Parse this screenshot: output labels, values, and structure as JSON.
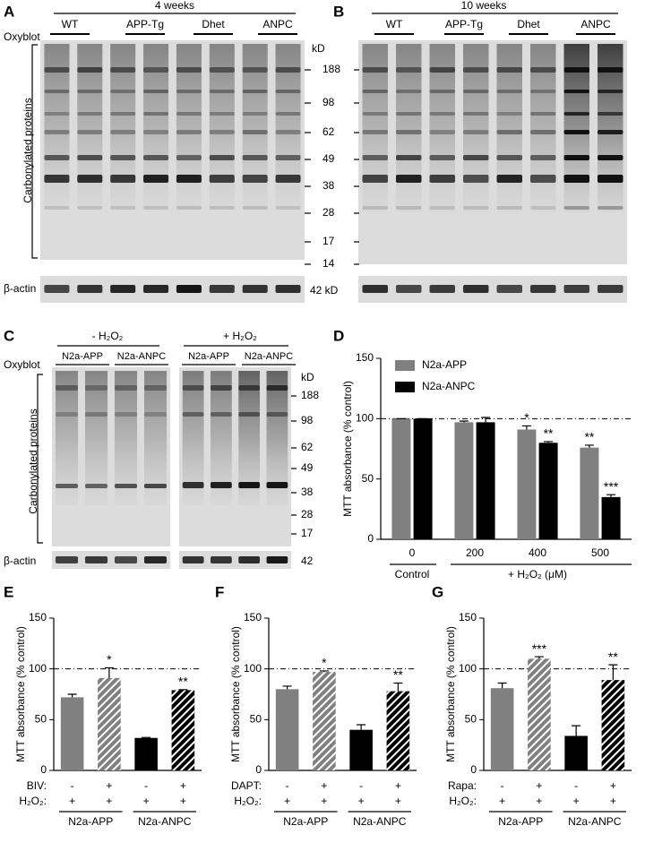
{
  "figure": {
    "A": {
      "panel": "A",
      "period": "4 weeks",
      "groups": [
        "WT",
        "APP-Tg",
        "Dhet",
        "ANPC"
      ],
      "oxyblot": "Oxyblot",
      "ylabel": "Carbonylated proteins",
      "kd": "kD",
      "markers": [
        188,
        98,
        62,
        49,
        38,
        28,
        17,
        14
      ],
      "actin": "β-actin",
      "actin_kd": "42 kD"
    },
    "B": {
      "panel": "B",
      "period": "10 weeks",
      "groups": [
        "WT",
        "APP-Tg",
        "Dhet",
        "ANPC"
      ]
    },
    "C": {
      "panel": "C",
      "conditions": [
        "- H₂O₂",
        "+ H₂O₂"
      ],
      "lines": [
        "N2a-APP",
        "N2a-ANPC",
        "N2a-APP",
        "N2a-ANPC"
      ],
      "oxyblot": "Oxyblot",
      "ylabel": "Carbonylated proteins",
      "kd": "kD",
      "markers": [
        188,
        98,
        62,
        49,
        38,
        28,
        17
      ],
      "actin": "β-actin",
      "actin_kd": "42"
    }
  },
  "chart_data": [
    {
      "type": "bar",
      "panel": "D",
      "ylabel": "MTT absorbance (% control)",
      "ylim": [
        0,
        150
      ],
      "yticks": [
        0,
        50,
        100,
        150
      ],
      "ref_line": 100,
      "categories": [
        "0",
        "200",
        "400",
        "500"
      ],
      "group_labels": [
        "Control",
        "+ H₂O₂ (μM)"
      ],
      "series": [
        {
          "name": "N2a-APP",
          "color": "#808080",
          "values": [
            100,
            97,
            91,
            76
          ],
          "errors": [
            0,
            1,
            3,
            2
          ],
          "significance": [
            null,
            null,
            "*",
            "**"
          ]
        },
        {
          "name": "N2a-ANPC",
          "color": "#000000",
          "values": [
            100,
            97,
            80,
            35
          ],
          "errors": [
            0,
            4,
            1,
            2
          ],
          "significance": [
            null,
            null,
            "**",
            "***"
          ]
        }
      ]
    },
    {
      "type": "bar",
      "panel": "E",
      "ylabel": "MTT absorbance (% control)",
      "ylim": [
        0,
        150
      ],
      "yticks": [
        0,
        50,
        100,
        150
      ],
      "ref_line": 100,
      "values": [
        72,
        91,
        32,
        79
      ],
      "errors": [
        3,
        10,
        0.5,
        0.5
      ],
      "colors": [
        "#808080",
        "#808080",
        "#000000",
        "#000000"
      ],
      "hatched": [
        false,
        true,
        false,
        true
      ],
      "significance": [
        null,
        "*",
        null,
        "**"
      ],
      "rows": [
        {
          "label": "BIV:",
          "values": [
            "-",
            "+",
            "-",
            "+"
          ]
        },
        {
          "label": "H₂O₂:",
          "values": [
            "+",
            "+",
            "+",
            "+"
          ]
        }
      ],
      "groups": [
        "N2a-APP",
        "N2a-ANPC"
      ]
    },
    {
      "type": "bar",
      "panel": "F",
      "ylabel": "MTT absorbance (% control)",
      "ylim": [
        0,
        150
      ],
      "yticks": [
        0,
        50,
        100,
        150
      ],
      "ref_line": 100,
      "values": [
        80,
        97,
        40,
        78
      ],
      "errors": [
        3,
        1,
        5,
        8
      ],
      "colors": [
        "#808080",
        "#808080",
        "#000000",
        "#000000"
      ],
      "hatched": [
        false,
        true,
        false,
        true
      ],
      "significance": [
        null,
        "*",
        null,
        "**"
      ],
      "rows": [
        {
          "label": "DAPT:",
          "values": [
            "-",
            "+",
            "-",
            "+"
          ]
        },
        {
          "label": "H₂O₂:",
          "values": [
            "+",
            "+",
            "+",
            "+"
          ]
        }
      ],
      "groups": [
        "N2a-APP",
        "N2a-ANPC"
      ]
    },
    {
      "type": "bar",
      "panel": "G",
      "ylabel": "MTT absorbance (% control)",
      "ylim": [
        0,
        150
      ],
      "yticks": [
        0,
        50,
        100,
        150
      ],
      "ref_line": 100,
      "values": [
        81,
        110,
        34,
        89
      ],
      "errors": [
        5,
        2,
        10,
        15
      ],
      "colors": [
        "#808080",
        "#808080",
        "#000000",
        "#000000"
      ],
      "hatched": [
        false,
        true,
        false,
        true
      ],
      "significance": [
        null,
        "***",
        null,
        "**"
      ],
      "rows": [
        {
          "label": "Rapa:",
          "values": [
            "-",
            "+",
            "-",
            "+"
          ]
        },
        {
          "label": "H₂O₂:",
          "values": [
            "+",
            "+",
            "+",
            "+"
          ]
        }
      ],
      "groups": [
        "N2a-APP",
        "N2a-ANPC"
      ]
    }
  ]
}
